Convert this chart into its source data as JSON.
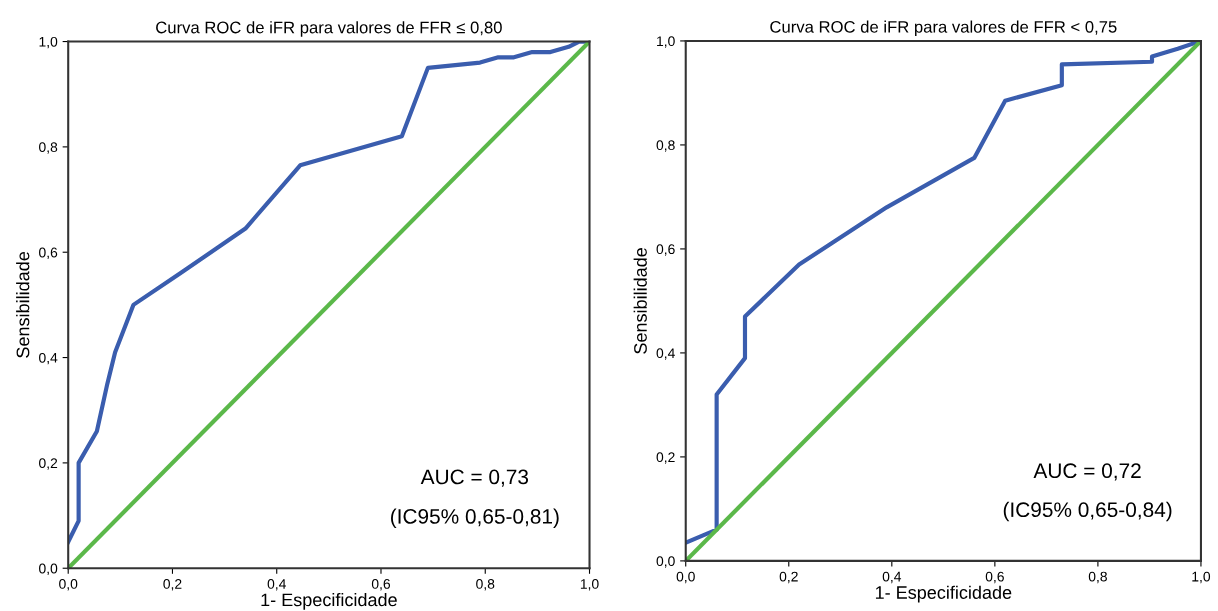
{
  "chart_data": [
    {
      "type": "line",
      "title": "Curva ROC de iFR para valores de FFR ≤ 0,80",
      "xlabel": "1- Especificidade",
      "ylabel": "Sensibilidade",
      "grid": false,
      "legend": false,
      "marker": "none",
      "line_style": "solid",
      "xlim": [
        0,
        1
      ],
      "ylim": [
        0,
        1
      ],
      "xticks": [
        {
          "value": 0,
          "label": "0,0"
        },
        {
          "value": 0.2,
          "label": "0,2"
        },
        {
          "value": 0.4,
          "label": "0,4"
        },
        {
          "value": 0.6,
          "label": "0,6"
        },
        {
          "value": 0.8,
          "label": "0,8"
        },
        {
          "value": 1,
          "label": "1,0"
        }
      ],
      "yticks": [
        {
          "value": 0,
          "label": "0,0"
        },
        {
          "value": 0.2,
          "label": "0,2"
        },
        {
          "value": 0.4,
          "label": "0,4"
        },
        {
          "value": 0.6,
          "label": "0,6"
        },
        {
          "value": 0.8,
          "label": "0,8"
        },
        {
          "value": 1,
          "label": "1,0"
        }
      ],
      "series": [
        {
          "color": "#3a5dae",
          "x": [
            0,
            0.02,
            0.02,
            0.055,
            0.075,
            0.09,
            0.125,
            0.215,
            0.34,
            0.445,
            0.64,
            0.69,
            0.79,
            0.825,
            0.855,
            0.89,
            0.925,
            0.96,
            0.98,
            1
          ],
          "values": [
            0.05,
            0.09,
            0.2,
            0.26,
            0.35,
            0.41,
            0.5,
            0.56,
            0.645,
            0.765,
            0.82,
            0.95,
            0.96,
            0.97,
            0.97,
            0.98,
            0.98,
            0.99,
            1,
            1
          ]
        },
        {
          "color": "#5bb84a",
          "x": [
            0,
            1
          ],
          "values": [
            0,
            1
          ]
        }
      ],
      "annotations": [
        "AUC = 0,73",
        "(IC95% 0,65-0,81)"
      ]
    },
    {
      "type": "line",
      "title": "Curva ROC de iFR para valores de FFR < 0,75",
      "xlabel": "1- Especificidade",
      "ylabel": "Sensibilidade",
      "grid": false,
      "legend": false,
      "marker": "none",
      "line_style": "solid",
      "xlim": [
        0,
        1
      ],
      "ylim": [
        0,
        1
      ],
      "xticks": [
        {
          "value": 0,
          "label": "0,0"
        },
        {
          "value": 0.2,
          "label": "0,2"
        },
        {
          "value": 0.4,
          "label": "0,4"
        },
        {
          "value": 0.6,
          "label": "0,6"
        },
        {
          "value": 0.8,
          "label": "0,8"
        },
        {
          "value": 1,
          "label": "1,0"
        }
      ],
      "yticks": [
        {
          "value": 0,
          "label": "0,0"
        },
        {
          "value": 0.2,
          "label": "0,2"
        },
        {
          "value": 0.4,
          "label": "0,4"
        },
        {
          "value": 0.6,
          "label": "0,6"
        },
        {
          "value": 0.8,
          "label": "0,8"
        },
        {
          "value": 1,
          "label": "1,0"
        }
      ],
      "series": [
        {
          "color": "#3a5dae",
          "x": [
            0,
            0.06,
            0.06,
            0.115,
            0.115,
            0.22,
            0.39,
            0.56,
            0.62,
            0.73,
            0.73,
            0.905,
            0.905,
            0.955,
            1
          ],
          "values": [
            0.035,
            0.06,
            0.32,
            0.39,
            0.47,
            0.57,
            0.68,
            0.775,
            0.885,
            0.915,
            0.955,
            0.96,
            0.97,
            0.985,
            1
          ]
        },
        {
          "color": "#5bb84a",
          "x": [
            0,
            1
          ],
          "values": [
            0,
            1
          ]
        }
      ],
      "annotations": [
        "AUC = 0,72",
        "(IC95% 0,65-0,84)"
      ]
    }
  ]
}
